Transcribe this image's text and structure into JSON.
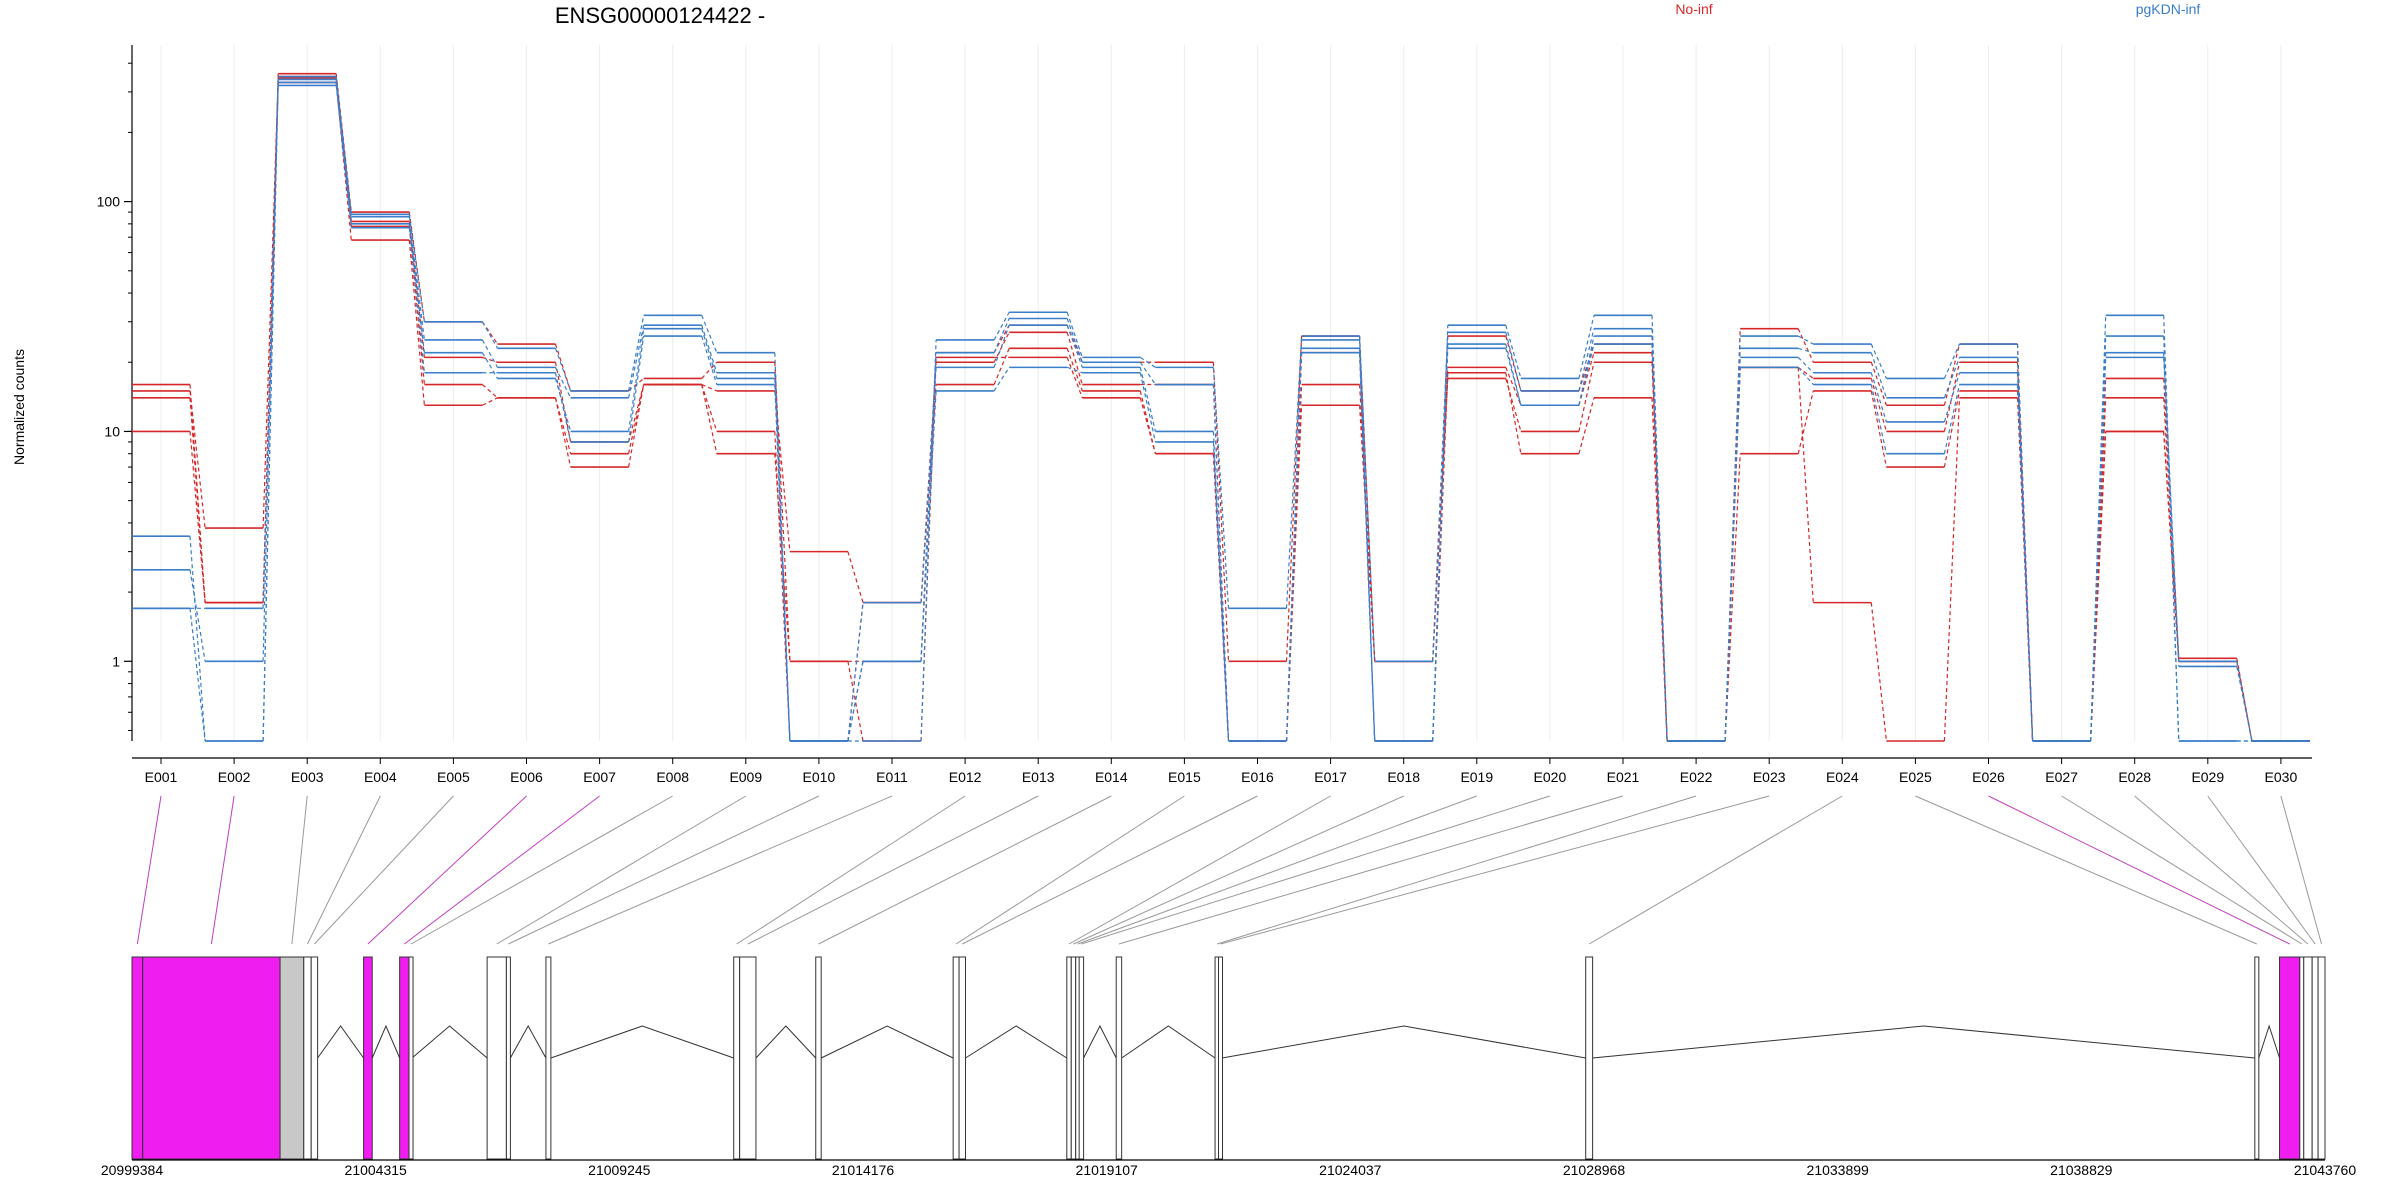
{
  "title": "ENSG00000124422 -",
  "legend": {
    "position": "top-right",
    "items": [
      {
        "label": "No-inf",
        "color": "#d62728"
      },
      {
        "label": "pgKDN-inf",
        "color": "#3a7dc9"
      }
    ]
  },
  "chart_data": {
    "type": "line",
    "title": "ENSG00000124422 -",
    "ylabel": "Normalized counts",
    "yscale": "log",
    "ylim": [
      0.45,
      480
    ],
    "yticks": [
      1,
      10,
      100
    ],
    "ytick_labels": [
      "1",
      "10",
      "100"
    ],
    "grid": "vertical",
    "legend_position": "top-right",
    "categories": [
      "E001",
      "E002",
      "E003",
      "E004",
      "E005",
      "E006",
      "E007",
      "E008",
      "E009",
      "E010",
      "E011",
      "E012",
      "E013",
      "E014",
      "E015",
      "E016",
      "E017",
      "E018",
      "E019",
      "E020",
      "E021",
      "E022",
      "E023",
      "E024",
      "E025",
      "E026",
      "E027",
      "E028",
      "E029",
      "E030"
    ],
    "series": [
      {
        "group": "No-inf",
        "color": "#d62728",
        "values": [
          16,
          1.8,
          360,
          90,
          30,
          24,
          15,
          17,
          20,
          1.0,
          1.0,
          22,
          29,
          20,
          20,
          1.0,
          26,
          1.0,
          26,
          15,
          24,
          0.45,
          28,
          20,
          13,
          24,
          0.45,
          17,
          1.03,
          0.45
        ]
      },
      {
        "group": "No-inf",
        "color": "#d62728",
        "values": [
          15,
          3.8,
          345,
          82,
          21,
          20,
          9,
          16,
          15,
          3.0,
          1.8,
          20,
          27,
          16,
          16,
          0.45,
          16,
          1.0,
          19,
          13,
          22,
          0.45,
          19,
          17,
          10,
          20,
          0.45,
          14,
          1.0,
          0.45
        ]
      },
      {
        "group": "No-inf",
        "color": "#d62728",
        "values": [
          14,
          1.8,
          350,
          78,
          16,
          14,
          8,
          16,
          10,
          0.45,
          1.8,
          16,
          23,
          15,
          8,
          0.45,
          13,
          1.0,
          17,
          10,
          20,
          0.45,
          8,
          15,
          7,
          15,
          0.45,
          10,
          1.0,
          0.45
        ]
      },
      {
        "group": "No-inf",
        "color": "#d62728",
        "values": [
          10,
          1.8,
          330,
          68,
          13,
          14,
          7,
          16,
          8,
          1.0,
          0.45,
          21,
          21,
          14,
          8,
          0.45,
          22,
          0.45,
          18,
          8,
          14,
          0.45,
          19,
          1.8,
          0.45,
          14,
          0.45,
          10,
          1.0,
          0.45
        ]
      },
      {
        "group": "pgKDN-inf",
        "color": "#3a7dc9",
        "values": [
          1.7,
          0.45,
          350,
          88,
          30,
          23,
          15,
          32,
          22,
          0.45,
          0.45,
          25,
          33,
          21,
          19,
          1.7,
          26,
          0.45,
          29,
          17,
          32,
          0.45,
          26,
          24,
          17,
          24,
          0.45,
          32,
          0.45,
          0.45
        ]
      },
      {
        "group": "pgKDN-inf",
        "color": "#3a7dc9",
        "values": [
          3.5,
          0.45,
          340,
          86,
          25,
          19,
          14,
          29,
          18,
          0.45,
          1.0,
          22,
          31,
          20,
          16,
          0.45,
          25,
          1.0,
          27,
          15,
          28,
          0.45,
          23,
          22,
          14,
          21,
          0.45,
          26,
          0.45,
          0.45
        ]
      },
      {
        "group": "pgKDN-inf",
        "color": "#3a7dc9",
        "values": [
          2.5,
          1.0,
          330,
          80,
          22,
          17,
          10,
          28,
          17,
          0.45,
          1.8,
          19,
          29,
          19,
          10,
          0.45,
          23,
          0.45,
          24,
          13,
          26,
          0.45,
          21,
          18,
          11,
          18,
          0.45,
          22,
          1.0,
          0.45
        ]
      },
      {
        "group": "pgKDN-inf",
        "color": "#3a7dc9",
        "values": [
          1.7,
          1.7,
          320,
          77,
          18,
          18,
          9,
          26,
          16,
          0.45,
          1.0,
          15,
          19,
          18,
          9,
          0.45,
          22,
          0.45,
          23,
          13,
          24,
          0.45,
          19,
          16,
          8,
          16,
          0.45,
          21,
          0.95,
          0.45
        ]
      }
    ],
    "gene_model": {
      "genomic_ticks": [
        "20999384",
        "21004315",
        "21009245",
        "21014176",
        "21019107",
        "21024037",
        "21028968",
        "21033899",
        "21038829",
        "21043760"
      ],
      "range": [
        20999384,
        21043760
      ],
      "exons": [
        {
          "start": 20999384,
          "end": 20999600,
          "highlighted": true,
          "bin": "E001"
        },
        {
          "start": 20999600,
          "end": 21002380,
          "highlighted": true,
          "bin": "E002"
        },
        {
          "start": 21002380,
          "end": 21002860,
          "highlighted": false,
          "bin": "E003"
        },
        {
          "start": 21002860,
          "end": 21003010,
          "highlighted": false,
          "bin": "E004"
        },
        {
          "start": 21003010,
          "end": 21003140,
          "highlighted": false,
          "bin": "E005"
        },
        {
          "start": 21004070,
          "end": 21004245,
          "highlighted": true,
          "bin": "E006"
        },
        {
          "start": 21004800,
          "end": 21004990,
          "highlighted": true,
          "bin": "E007"
        },
        {
          "start": 21004990,
          "end": 21005050,
          "highlighted": false,
          "bin": "E008"
        },
        {
          "start": 21006570,
          "end": 21006960,
          "highlighted": false,
          "bin": "E009"
        },
        {
          "start": 21006960,
          "end": 21007040,
          "highlighted": false,
          "bin": "E010"
        },
        {
          "start": 21007760,
          "end": 21007860,
          "highlighted": false,
          "bin": "E011"
        },
        {
          "start": 21011560,
          "end": 21011680,
          "highlighted": false,
          "bin": "E012"
        },
        {
          "start": 21011680,
          "end": 21012010,
          "highlighted": false,
          "bin": "E013"
        },
        {
          "start": 21013220,
          "end": 21013330,
          "highlighted": false,
          "bin": "E014"
        },
        {
          "start": 21016000,
          "end": 21016120,
          "highlighted": false,
          "bin": "E015"
        },
        {
          "start": 21016120,
          "end": 21016250,
          "highlighted": false,
          "bin": "E016"
        },
        {
          "start": 21018300,
          "end": 21018390,
          "highlighted": false,
          "bin": "E017"
        },
        {
          "start": 21018390,
          "end": 21018480,
          "highlighted": false,
          "bin": "E018"
        },
        {
          "start": 21018480,
          "end": 21018550,
          "highlighted": false,
          "bin": "E019"
        },
        {
          "start": 21018550,
          "end": 21018640,
          "highlighted": false,
          "bin": "E020"
        },
        {
          "start": 21019300,
          "end": 21019410,
          "highlighted": false,
          "bin": "E021"
        },
        {
          "start": 21021300,
          "end": 21021370,
          "highlighted": false,
          "bin": "E022"
        },
        {
          "start": 21021370,
          "end": 21021440,
          "highlighted": false,
          "bin": "E023"
        },
        {
          "start": 21028800,
          "end": 21028940,
          "highlighted": false,
          "bin": "E024"
        },
        {
          "start": 21042340,
          "end": 21042420,
          "highlighted": false,
          "bin": "E025"
        },
        {
          "start": 21042840,
          "end": 21043250,
          "highlighted": true,
          "bin": "E026"
        },
        {
          "start": 21043250,
          "end": 21043330,
          "highlighted": false,
          "bin": "E027"
        },
        {
          "start": 21043330,
          "end": 21043500,
          "highlighted": false,
          "bin": "E028"
        },
        {
          "start": 21043500,
          "end": 21043620,
          "highlighted": false,
          "bin": "E029"
        },
        {
          "start": 21043620,
          "end": 21043760,
          "highlighted": false,
          "bin": "E030"
        }
      ]
    }
  }
}
